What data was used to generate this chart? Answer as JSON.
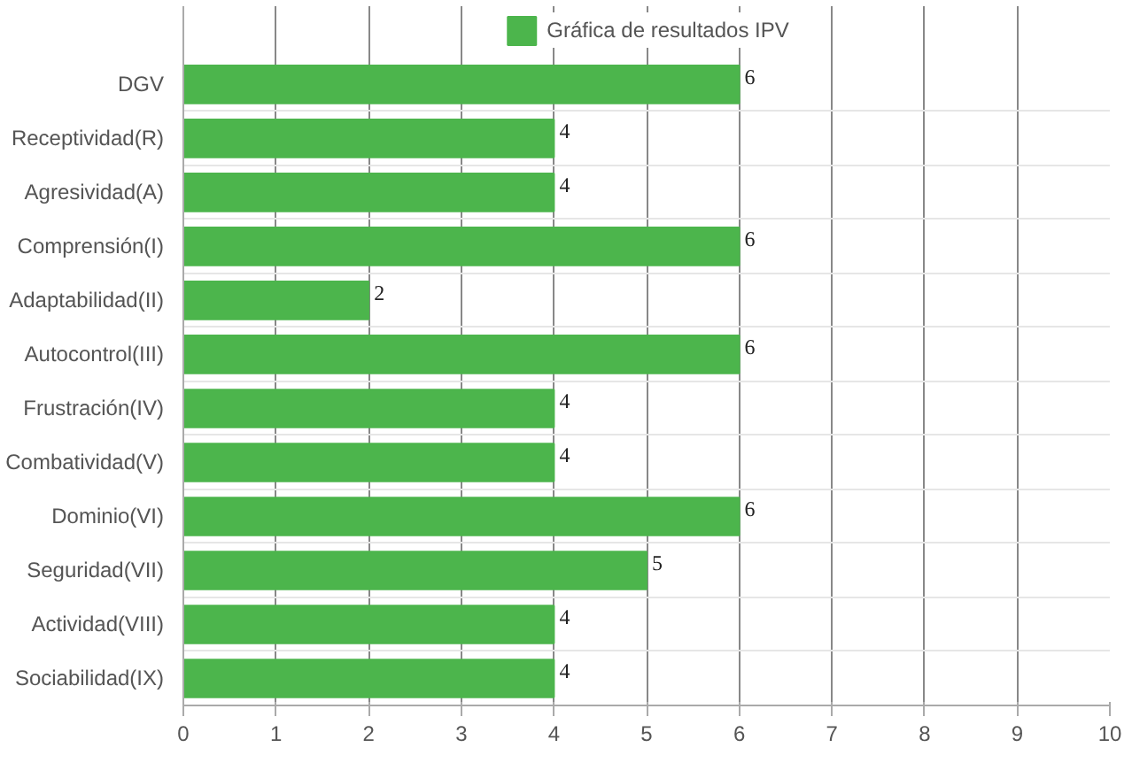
{
  "chart_data": {
    "type": "bar",
    "orientation": "horizontal",
    "categories": [
      "DGV",
      "Receptividad(R)",
      "Agresividad(A)",
      "Comprensión(I)",
      "Adaptabilidad(II)",
      "Autocontrol(III)",
      "Frustración(IV)",
      "Combatividad(V)",
      "Dominio(VI)",
      "Seguridad(VII)",
      "Actividad(VIII)",
      "Sociabilidad(IX)"
    ],
    "series": [
      {
        "name": "Gráfica de resultados IPV",
        "color": "#4cb54c",
        "values": [
          6,
          4,
          4,
          6,
          2,
          6,
          4,
          4,
          6,
          5,
          4,
          4
        ]
      }
    ],
    "xlim": [
      0,
      10
    ],
    "xticks": [
      0,
      1,
      2,
      3,
      4,
      5,
      6,
      7,
      8,
      9,
      10
    ],
    "grid": true,
    "legend": "top",
    "data_labels": true
  }
}
